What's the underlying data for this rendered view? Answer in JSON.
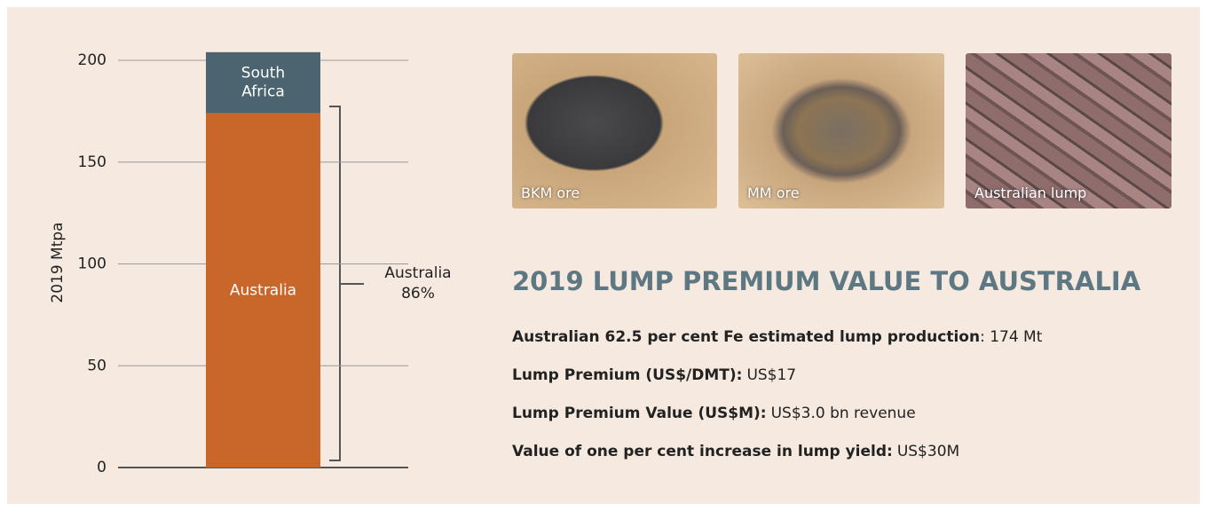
{
  "chart_data": {
    "type": "stacked-bar",
    "y_label": "2019 Mtpa",
    "categories": [
      null
    ],
    "series": [
      {
        "name": "Australia",
        "color": "#c9672a",
        "values": [
          174
        ]
      },
      {
        "name": "South Africa",
        "color": "#4b6470",
        "values": [
          30
        ]
      }
    ],
    "ylim": [
      0,
      200
    ],
    "yticks": [
      0,
      50,
      100,
      150,
      200
    ],
    "grid": true,
    "annotation": [
      "Australia",
      "86%"
    ]
  },
  "photos": [
    {
      "caption": "BKM ore"
    },
    {
      "caption": "MM ore"
    },
    {
      "caption": "Australian lump"
    }
  ],
  "panel": {
    "title": "2019 LUMP PREMIUM VALUE TO AUSTRALIA",
    "facts": [
      {
        "label": "Australian 62.5 per cent Fe estimated lump production",
        "value": ": 174 Mt"
      },
      {
        "label": "Lump Premium (US$/DMT):",
        "value": "US$17"
      },
      {
        "label": "Lump Premium Value (US$M):",
        "value": "US$3.0 bn revenue"
      },
      {
        "label": "Value of one per cent increase in lump yield:",
        "value": "US$30M"
      }
    ]
  }
}
